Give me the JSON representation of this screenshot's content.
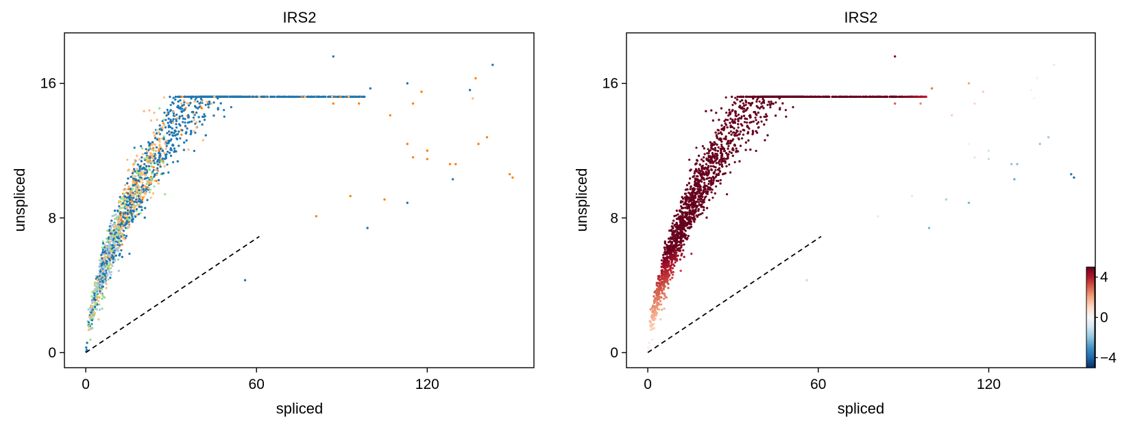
{
  "chart_data": [
    {
      "type": "scatter",
      "title": "IRS2",
      "xlabel": "spliced",
      "ylabel": "unspliced",
      "xlim": [
        -7.5,
        157.5
      ],
      "ylim": [
        -0.9,
        19
      ],
      "xticks": [
        0,
        60,
        120
      ],
      "yticks": [
        0,
        8,
        16
      ],
      "xtick_labels": [
        "0",
        "60",
        "120"
      ],
      "ytick_labels": [
        "0",
        "8",
        "16"
      ],
      "grid": false,
      "legend": "none",
      "coloring": "categorical clusters",
      "colors": [
        "#1f77b4",
        "#ff7f0e",
        "#ffbb78",
        "#98df8a",
        "#aec7e8"
      ],
      "steady_state_line": {
        "x": [
          0,
          61
        ],
        "y": [
          0,
          6.9
        ],
        "style": "dashed",
        "color": "#000000"
      },
      "outliers": [
        {
          "x": 87,
          "y": 17.6,
          "color": "#1f77b4"
        },
        {
          "x": 143,
          "y": 17.1,
          "color": "#1f77b4"
        },
        {
          "x": 137,
          "y": 16.3,
          "color": "#ff7f0e"
        },
        {
          "x": 113,
          "y": 16.0,
          "color": "#1f77b4"
        },
        {
          "x": 100,
          "y": 15.7,
          "color": "#1f77b4"
        },
        {
          "x": 118,
          "y": 15.5,
          "color": "#ff7f0e"
        },
        {
          "x": 135,
          "y": 15.6,
          "color": "#1f77b4"
        },
        {
          "x": 136,
          "y": 15.1,
          "color": "#ffbb78"
        },
        {
          "x": 115,
          "y": 14.8,
          "color": "#ff7f0e"
        },
        {
          "x": 87,
          "y": 14.8,
          "color": "#ff7f0e"
        },
        {
          "x": 96,
          "y": 14.8,
          "color": "#ff7f0e"
        },
        {
          "x": 107,
          "y": 14.1,
          "color": "#ff7f0e"
        },
        {
          "x": 141,
          "y": 12.8,
          "color": "#ff7f0e"
        },
        {
          "x": 113,
          "y": 12.4,
          "color": "#ff7f0e"
        },
        {
          "x": 138,
          "y": 12.4,
          "color": "#ff7f0e"
        },
        {
          "x": 120,
          "y": 12.0,
          "color": "#ff7f0e"
        },
        {
          "x": 115,
          "y": 11.6,
          "color": "#ff7f0e"
        },
        {
          "x": 120,
          "y": 11.5,
          "color": "#ff7f0e"
        },
        {
          "x": 130,
          "y": 11.2,
          "color": "#ff7f0e"
        },
        {
          "x": 128,
          "y": 11.2,
          "color": "#ff7f0e"
        },
        {
          "x": 129,
          "y": 10.3,
          "color": "#1f77b4"
        },
        {
          "x": 149,
          "y": 10.6,
          "color": "#ff7f0e"
        },
        {
          "x": 150,
          "y": 10.4,
          "color": "#ff7f0e"
        },
        {
          "x": 105,
          "y": 9.1,
          "color": "#ff7f0e"
        },
        {
          "x": 113,
          "y": 8.9,
          "color": "#1f77b4"
        },
        {
          "x": 99,
          "y": 7.4,
          "color": "#1f77b4"
        },
        {
          "x": 93,
          "y": 9.3,
          "color": "#ff7f0e"
        },
        {
          "x": 81,
          "y": 8.1,
          "color": "#ff7f0e"
        },
        {
          "x": 56,
          "y": 4.3,
          "color": "#1f77b4"
        }
      ]
    },
    {
      "type": "scatter",
      "title": "IRS2",
      "xlabel": "spliced",
      "ylabel": "unspliced",
      "xlim": [
        -7.5,
        157.5
      ],
      "ylim": [
        -0.9,
        19
      ],
      "xticks": [
        0,
        60,
        120
      ],
      "yticks": [
        0,
        8,
        16
      ],
      "xtick_labels": [
        "0",
        "60",
        "120"
      ],
      "ytick_labels": [
        "0",
        "8",
        "16"
      ],
      "grid": false,
      "legend": "none",
      "coloring": "continuous residual (RdBu_r)",
      "steady_state_line": {
        "x": [
          0,
          61
        ],
        "y": [
          0,
          6.9
        ],
        "style": "dashed",
        "color": "#000000"
      },
      "colorbar": {
        "placement": "bottom-right",
        "range": [
          -5,
          5
        ],
        "ticks": [
          4,
          0,
          -4
        ],
        "tick_labels": [
          "4",
          "0",
          "−4"
        ],
        "colormap": [
          "#053061",
          "#2166ac",
          "#4393c3",
          "#92c5de",
          "#d1e5f0",
          "#f7f7f7",
          "#fddbc7",
          "#f4a582",
          "#d6604d",
          "#b2182b",
          "#67001f"
        ]
      }
    }
  ]
}
